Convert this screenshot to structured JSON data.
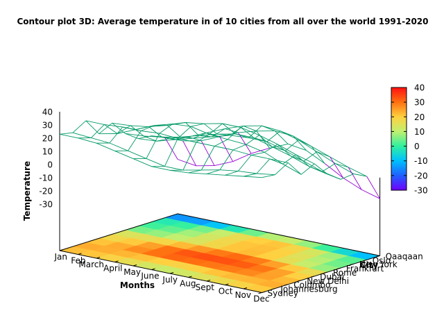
{
  "chart_data": {
    "type": "surface3d",
    "title": "Contour plot 3D: Average temperature in of 10 cities from all over the world 1991-2020",
    "xlabel": "Months",
    "ylabel": "City",
    "zlabel": "Temperature",
    "x_categories": [
      "Jan",
      "Feb",
      "March",
      "April",
      "May",
      "June",
      "July",
      "Aug",
      "Sept",
      "Oct",
      "Nov",
      "Dec"
    ],
    "y_categories": [
      "Sydney",
      "Johannesburg",
      "Colombo",
      "New Delhi",
      "Dubai",
      "Rome",
      "Frankfurt",
      "New York",
      "Oslo",
      "Qaaqaan"
    ],
    "values": [
      [
        23,
        21,
        27,
        14,
        19,
        8,
        1,
        0,
        -4,
        -24
      ],
      [
        23,
        20,
        27,
        17,
        20,
        9,
        2,
        1,
        -4,
        -26
      ],
      [
        22,
        19,
        28,
        23,
        22,
        11,
        6,
        5,
        -1,
        -23
      ],
      [
        19,
        16,
        28,
        29,
        26,
        14,
        10,
        11,
        5,
        -17
      ],
      [
        16,
        13,
        29,
        33,
        31,
        18,
        14,
        17,
        11,
        -8
      ],
      [
        13,
        10,
        28,
        34,
        33,
        22,
        18,
        22,
        15,
        -1
      ],
      [
        13,
        10,
        28,
        31,
        36,
        25,
        19,
        25,
        18,
        5
      ],
      [
        14,
        13,
        28,
        30,
        36,
        25,
        19,
        24,
        17,
        3
      ],
      [
        16,
        16,
        28,
        29,
        33,
        21,
        15,
        20,
        12,
        -4
      ],
      [
        18,
        18,
        27,
        26,
        29,
        17,
        10,
        14,
        7,
        -12
      ],
      [
        20,
        19,
        27,
        20,
        24,
        12,
        5,
        8,
        2,
        -18
      ],
      [
        22,
        21,
        27,
        15,
        20,
        9,
        2,
        3,
        -2,
        -22
      ]
    ],
    "zlim": [
      -30,
      40
    ],
    "z_ticks": [
      40,
      30,
      20,
      10,
      0,
      -10,
      -20,
      -30
    ],
    "colorbar": {
      "min": -30,
      "max": 40,
      "ticks": [
        40,
        30,
        20,
        10,
        0,
        -10,
        -20,
        -30
      ],
      "colors": [
        "#7000ff",
        "#2060ff",
        "#00c0ff",
        "#30f0a0",
        "#c0f070",
        "#ffd040",
        "#ff7010",
        "#ff1010"
      ]
    },
    "mesh_color": "#009966",
    "mesh_low_color": "#9400d3",
    "grid": false
  }
}
